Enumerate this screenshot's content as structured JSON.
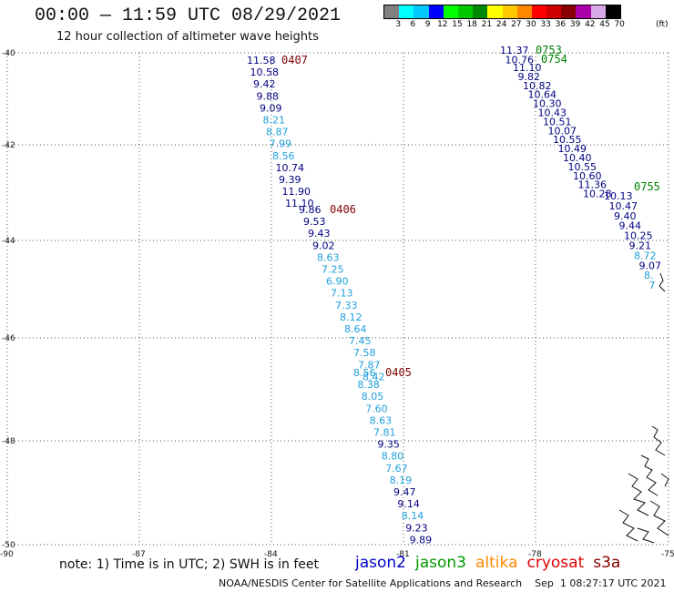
{
  "header": {
    "title": "00:00 — 11:59 UTC 08/29/2021",
    "subtitle": "12 hour collection of altimeter wave heights"
  },
  "legend": {
    "labels": [
      "3",
      "6",
      "9",
      "12",
      "15",
      "18",
      "21",
      "24",
      "27",
      "30",
      "33",
      "36",
      "39",
      "42",
      "45",
      "70"
    ],
    "unit": "(ft)",
    "colors": [
      "#808080",
      "#00ffff",
      "#00c8ff",
      "#0000ff",
      "#00ff00",
      "#00c800",
      "#008800",
      "#ffff00",
      "#ffc800",
      "#ff8800",
      "#ff0000",
      "#cc0000",
      "#880000",
      "#aa00aa",
      "#d8a8e8",
      "#000000"
    ]
  },
  "axes": {
    "lat_labels": [
      "-40",
      "-42",
      "-44",
      "-46",
      "-48",
      "-50"
    ],
    "lon_labels": [
      "-90",
      "-87",
      "-84",
      "-81",
      "-78",
      "-75"
    ]
  },
  "tracks": [
    {
      "time": "0407",
      "time_color": "#800000",
      "readings": [
        {
          "value": "11.58",
          "color": "#000080"
        },
        {
          "value": "10.58",
          "color": "#000080"
        },
        {
          "value": "9.42",
          "color": "#000080"
        },
        {
          "value": "9.88",
          "color": "#000080"
        },
        {
          "value": "9.09",
          "color": "#000080"
        },
        {
          "value": "8.21",
          "color": "#1ea0dc"
        },
        {
          "value": "8.87",
          "color": "#1ea0dc"
        },
        {
          "value": "7.99",
          "color": "#1ea0dc"
        },
        {
          "value": "8.56",
          "color": "#1ea0dc"
        },
        {
          "value": "10.74",
          "color": "#000080"
        },
        {
          "value": "9.39",
          "color": "#000080"
        },
        {
          "value": "11.90",
          "color": "#000080"
        },
        {
          "value": "11.10",
          "color": "#000080"
        }
      ]
    },
    {
      "time": "0406",
      "time_color": "#800000",
      "readings": [
        {
          "value": "9.86",
          "color": "#000080"
        },
        {
          "value": "9.53",
          "color": "#000080"
        },
        {
          "value": "9.43",
          "color": "#000080"
        },
        {
          "value": "9.02",
          "color": "#000080"
        },
        {
          "value": "8.63",
          "color": "#1ea0dc"
        },
        {
          "value": "7.25",
          "color": "#1ea0dc"
        },
        {
          "value": "6.90",
          "color": "#1ea0dc"
        },
        {
          "value": "7.13",
          "color": "#1ea0dc"
        },
        {
          "value": "7.33",
          "color": "#1ea0dc"
        },
        {
          "value": "8.12",
          "color": "#1ea0dc"
        },
        {
          "value": "8.64",
          "color": "#1ea0dc"
        },
        {
          "value": "7.45",
          "color": "#1ea0dc"
        },
        {
          "value": "7.58",
          "color": "#1ea0dc"
        },
        {
          "value": "7.87",
          "color": "#1ea0dc"
        },
        {
          "value": "8.42",
          "color": "#1ea0dc"
        }
      ]
    },
    {
      "time": "0405",
      "time_color": "#800000",
      "readings": [
        {
          "value": "8.56",
          "color": "#1ea0dc"
        },
        {
          "value": "8.38",
          "color": "#1ea0dc"
        },
        {
          "value": "8.05",
          "color": "#1ea0dc"
        },
        {
          "value": "7.60",
          "color": "#1ea0dc"
        },
        {
          "value": "8.63",
          "color": "#1ea0dc"
        },
        {
          "value": "7.81",
          "color": "#1ea0dc"
        },
        {
          "value": "9.35",
          "color": "#000080"
        },
        {
          "value": "8.80",
          "color": "#1ea0dc"
        },
        {
          "value": "7.67",
          "color": "#1ea0dc"
        },
        {
          "value": "8.19",
          "color": "#1ea0dc"
        },
        {
          "value": "9.47",
          "color": "#000080"
        },
        {
          "value": "9.14",
          "color": "#000080"
        },
        {
          "value": "8.14",
          "color": "#1ea0dc"
        },
        {
          "value": "9.23",
          "color": "#000080"
        },
        {
          "value": "9.89",
          "color": "#000080"
        }
      ]
    },
    {
      "time": "0753",
      "time_color": "#008000",
      "readings": [
        {
          "value": "11.37",
          "color": "#000080"
        },
        {
          "value": "10.76",
          "color": "#000080"
        }
      ]
    },
    {
      "time": "0754",
      "time_color": "#008000",
      "readings": [
        {
          "value": "11.10",
          "color": "#000080"
        },
        {
          "value": "9.82",
          "color": "#000080"
        },
        {
          "value": "10.82",
          "color": "#000080"
        },
        {
          "value": "10.64",
          "color": "#000080"
        },
        {
          "value": "10.30",
          "color": "#000080"
        },
        {
          "value": "10.43",
          "color": "#000080"
        },
        {
          "value": "10.51",
          "color": "#000080"
        },
        {
          "value": "10.07",
          "color": "#000080"
        },
        {
          "value": "10.55",
          "color": "#000080"
        },
        {
          "value": "10.49",
          "color": "#000080"
        },
        {
          "value": "10.40",
          "color": "#000080"
        },
        {
          "value": "10.55",
          "color": "#000080"
        },
        {
          "value": "10.60",
          "color": "#000080"
        },
        {
          "value": "11.36",
          "color": "#000080"
        },
        {
          "value": "10.28",
          "color": "#000080"
        }
      ]
    },
    {
      "time": "0755",
      "time_color": "#008000",
      "readings": [
        {
          "value": "10.13",
          "color": "#000080"
        },
        {
          "value": "10.47",
          "color": "#000080"
        },
        {
          "value": "9.40",
          "color": "#000080"
        },
        {
          "value": "9.44",
          "color": "#000080"
        },
        {
          "value": "10.25",
          "color": "#000080"
        },
        {
          "value": "9.21",
          "color": "#000080"
        },
        {
          "value": "8.72",
          "color": "#1ea0dc"
        },
        {
          "value": "9.07",
          "color": "#000080"
        },
        {
          "value": "8.",
          "color": "#1ea0dc"
        },
        {
          "value": "7",
          "color": "#1ea0dc"
        }
      ]
    }
  ],
  "footer": {
    "note": "note: 1) Time is in UTC; 2) SWH is in feet",
    "satellites": [
      {
        "name": "jason2",
        "color": "#0000cc"
      },
      {
        "name": "jason3",
        "color": "#009900"
      },
      {
        "name": "altika",
        "color": "#ff8800"
      },
      {
        "name": "cryosat",
        "color": "#dd0000"
      },
      {
        "name": "s3a",
        "color": "#880000"
      }
    ],
    "credit": "NOAA/NESDIS Center for Satellite Applications and Research    Sep  1 08:27:17 UTC 2021"
  }
}
